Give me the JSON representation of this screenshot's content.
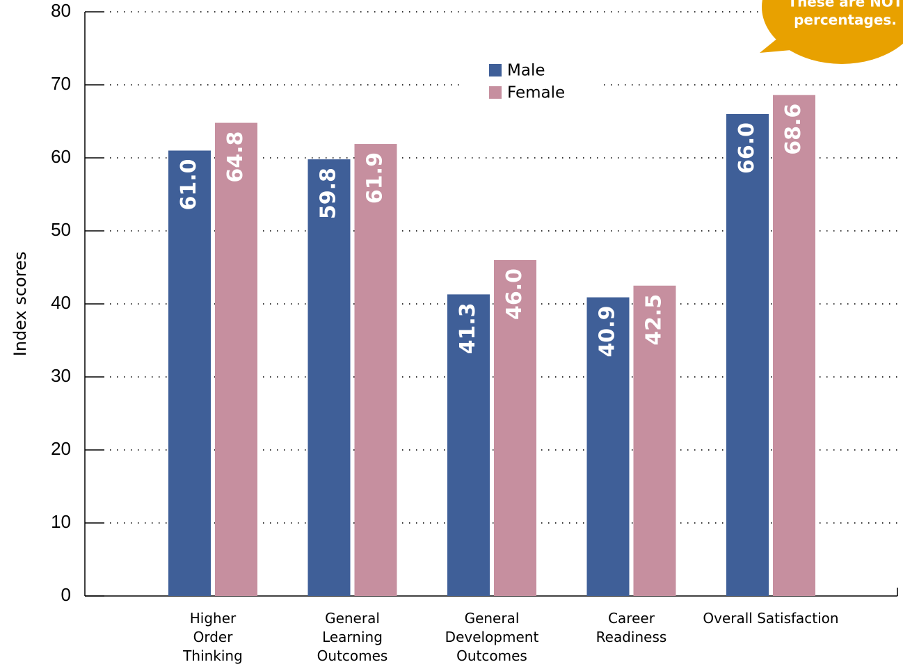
{
  "chart_data": {
    "type": "bar",
    "y_label": "Index scores",
    "annotation": [
      "These are NOT",
      "percentages."
    ],
    "categories": [
      [
        "Higher",
        "Order",
        "Thinking"
      ],
      [
        "General",
        "Learning",
        "Outcomes"
      ],
      [
        "General",
        "Development",
        "Outcomes"
      ],
      [
        "Career",
        "Readiness"
      ],
      [
        "Overall Satisfaction"
      ]
    ],
    "series": [
      {
        "name": "Male",
        "color": "#3f5f98",
        "values": [
          61.0,
          59.8,
          41.3,
          40.9,
          66.0
        ],
        "value_labels": [
          "61.0",
          "59.8",
          "41.3",
          "40.9",
          "66.0"
        ]
      },
      {
        "name": "Female",
        "color": "#c68f9f",
        "values": [
          64.8,
          61.9,
          46.0,
          42.5,
          68.6
        ],
        "value_labels": [
          "64.8",
          "61.9",
          "46.0",
          "42.5",
          "68.6"
        ]
      }
    ],
    "ylim": [
      0,
      80
    ],
    "yticks": [
      0,
      10,
      20,
      30,
      40,
      50,
      60,
      70,
      80
    ],
    "grid": true,
    "annotation_color": "#e8a100"
  }
}
